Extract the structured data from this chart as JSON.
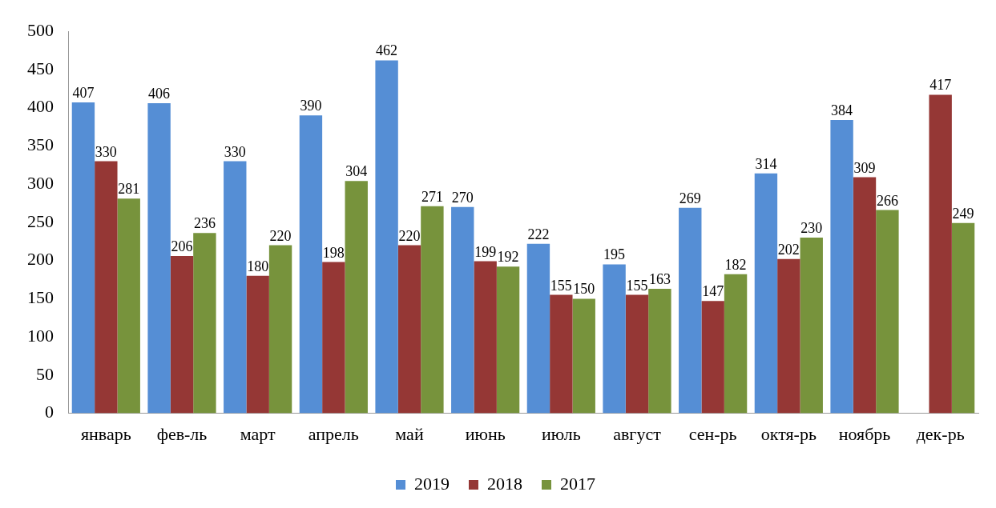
{
  "chart_data": {
    "type": "bar",
    "categories": [
      "январь",
      "фев-ль",
      "март",
      "апрель",
      "май",
      "июнь",
      "июль",
      "август",
      "сен-рь",
      "октя-рь",
      "ноябрь",
      "дек-рь"
    ],
    "series": [
      {
        "name": "2019",
        "color": "#558ed5",
        "values": [
          407,
          406,
          330,
          390,
          462,
          270,
          222,
          195,
          269,
          314,
          384,
          null
        ]
      },
      {
        "name": "2018",
        "color": "#953735",
        "values": [
          330,
          206,
          180,
          198,
          220,
          199,
          155,
          155,
          147,
          202,
          309,
          417
        ]
      },
      {
        "name": "2017",
        "color": "#77933c",
        "values": [
          281,
          236,
          220,
          304,
          271,
          192,
          150,
          163,
          182,
          230,
          266,
          249
        ]
      }
    ],
    "ylim": [
      0,
      500
    ],
    "yticks": [
      0,
      50,
      100,
      150,
      200,
      250,
      300,
      350,
      400,
      450,
      500
    ],
    "grid": false,
    "legend": "bottom",
    "data_labels": true
  }
}
